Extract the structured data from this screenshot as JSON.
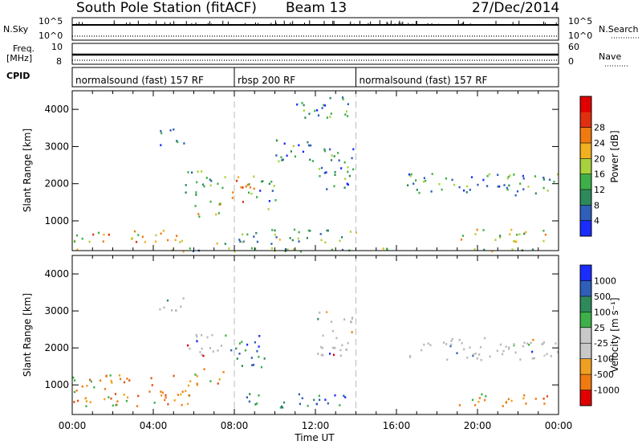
{
  "header": {
    "station": "South Pole Station (fitACF)",
    "beam": "Beam 13",
    "date": "27/Dec/2014"
  },
  "top_strips": {
    "nsky_label": "N.Sky",
    "nsky_ticks": [
      "10^5",
      "10^0"
    ],
    "nsearch_label": "N.Search",
    "nsearch_ticks": [
      "10^5",
      "10^0"
    ],
    "freq_label": "Freq.",
    "freq_unit": "[MHz]",
    "freq_ticks": [
      "10",
      "8"
    ],
    "nave_label": "Nave",
    "nave_ticks": [
      "60",
      "0"
    ],
    "cpid_label": "CPID"
  },
  "cpid_segments": [
    {
      "label": "normalsound (fast) 157 RF",
      "start_h": 0,
      "end_h": 8
    },
    {
      "label": "rbsp 200 RF",
      "start_h": 8,
      "end_h": 14
    },
    {
      "label": "normalsound (fast) 157 RF",
      "start_h": 14,
      "end_h": 24
    }
  ],
  "colors": {
    "power_scale": [
      "#1a2cff",
      "#2f5fb8",
      "#2e8a5a",
      "#3db04a",
      "#a8d23c",
      "#f0b020",
      "#f07a10",
      "#e03010",
      "#e00000"
    ],
    "velocity_scale": [
      "#1a2cff",
      "#2f5fb8",
      "#2e8a5a",
      "#3db04a",
      "#c8c8c8",
      "#c8c8c8",
      "#f0a020",
      "#f07a10",
      "#e00000"
    ],
    "ground_scatter": "#b8b8b8"
  },
  "chart_data": [
    {
      "type": "heatmap",
      "name": "power",
      "xlabel": "Time UT",
      "ylabel": "Slant Range [km]",
      "xlim": [
        0,
        24
      ],
      "ylim": [
        200,
        4500
      ],
      "x_ticks": [
        "00:00",
        "04:00",
        "08:00",
        "12:00",
        "16:00",
        "20:00",
        "00:00"
      ],
      "y_ticks": [
        1000,
        2000,
        3000,
        4000
      ],
      "colorbar_label": "Power [dB]",
      "colorbar_ticks": [
        "4",
        "8",
        "12",
        "16",
        "20",
        "24",
        "28"
      ],
      "colorbar_range": [
        0,
        30
      ],
      "regions": [
        {
          "t": [
            4.2,
            5.5
          ],
          "r": [
            3000,
            3500
          ],
          "v": 8
        },
        {
          "t": [
            5.5,
            7.6
          ],
          "r": [
            1700,
            2400
          ],
          "v": 8
        },
        {
          "t": [
            6.0,
            7.5
          ],
          "r": [
            1100,
            1600
          ],
          "v": 14
        },
        {
          "t": [
            7.8,
            9.2
          ],
          "r": [
            1500,
            2400
          ],
          "v": 20
        },
        {
          "t": [
            9.2,
            10.2
          ],
          "r": [
            1300,
            2100
          ],
          "v": 6
        },
        {
          "t": [
            10.0,
            12.0
          ],
          "r": [
            2600,
            3300
          ],
          "v": 6
        },
        {
          "t": [
            12.0,
            13.9
          ],
          "r": [
            1800,
            3000
          ],
          "v": 8
        },
        {
          "t": [
            11.0,
            13.9
          ],
          "r": [
            3800,
            4400
          ],
          "v": 6
        },
        {
          "t": [
            16.5,
            24.0
          ],
          "r": [
            1700,
            2300
          ],
          "v": 8
        },
        {
          "t": [
            0.0,
            6.0
          ],
          "r": [
            450,
            800
          ],
          "v": 18
        },
        {
          "t": [
            7.0,
            14.0
          ],
          "r": [
            400,
            800
          ],
          "v": 12
        },
        {
          "t": [
            19.0,
            23.5
          ],
          "r": [
            450,
            800
          ],
          "v": 16
        },
        {
          "t": [
            0.0,
            24.0
          ],
          "r": [
            200,
            300
          ],
          "v": 10
        }
      ]
    },
    {
      "type": "heatmap",
      "name": "velocity",
      "xlabel": "Time UT",
      "ylabel": "Slant Range [km]",
      "xlim": [
        0,
        24
      ],
      "ylim": [
        200,
        4500
      ],
      "x_ticks": [
        "00:00",
        "04:00",
        "08:00",
        "12:00",
        "16:00",
        "20:00",
        "00:00"
      ],
      "y_ticks": [
        1000,
        2000,
        3000,
        4000
      ],
      "colorbar_label": "Velocity [m s⁻¹]",
      "colorbar_ticks": [
        "1000",
        "500",
        "100",
        "25",
        "-25",
        "-100",
        "-500",
        "-1000"
      ],
      "regions": [
        {
          "t": [
            4.2,
            5.5
          ],
          "r": [
            3000,
            3500
          ],
          "v": "ground"
        },
        {
          "t": [
            5.5,
            7.6
          ],
          "r": [
            1700,
            2400
          ],
          "v": "ground"
        },
        {
          "t": [
            6.0,
            7.5
          ],
          "r": [
            1000,
            1500
          ],
          "v": "neg"
        },
        {
          "t": [
            7.8,
            9.5
          ],
          "r": [
            1500,
            2400
          ],
          "v": "pos"
        },
        {
          "t": [
            12.0,
            13.9
          ],
          "r": [
            1800,
            3000
          ],
          "v": "ground"
        },
        {
          "t": [
            16.5,
            24.0
          ],
          "r": [
            1700,
            2300
          ],
          "v": "ground"
        },
        {
          "t": [
            0.0,
            6.0
          ],
          "r": [
            450,
            1300
          ],
          "v": "neg"
        },
        {
          "t": [
            8.5,
            13.5
          ],
          "r": [
            400,
            800
          ],
          "v": "pos"
        },
        {
          "t": [
            19.0,
            23.5
          ],
          "r": [
            450,
            800
          ],
          "v": "neg"
        }
      ]
    }
  ]
}
